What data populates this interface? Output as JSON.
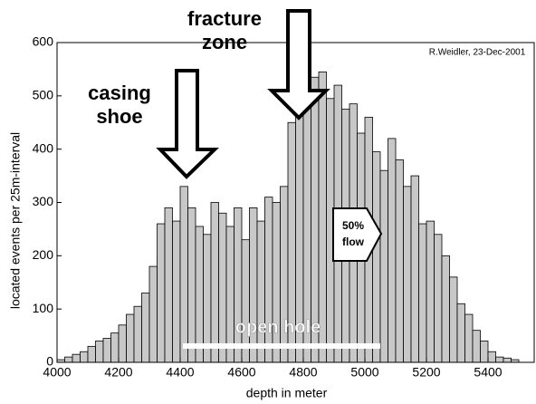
{
  "chart_data": {
    "type": "histogram",
    "xlabel": "depth in meter",
    "ylabel": "located events per 25m-interval",
    "bins": [
      4000,
      4025,
      4050,
      4075,
      4100,
      4125,
      4150,
      4175,
      4200,
      4225,
      4250,
      4275,
      4300,
      4325,
      4350,
      4375,
      4400,
      4425,
      4450,
      4475,
      4500,
      4525,
      4550,
      4575,
      4600,
      4625,
      4650,
      4675,
      4700,
      4725,
      4750,
      4775,
      4800,
      4825,
      4850,
      4875,
      4900,
      4925,
      4950,
      4975,
      5000,
      5025,
      5050,
      5075,
      5100,
      5125,
      5150,
      5175,
      5200,
      5225,
      5250,
      5275,
      5300,
      5325,
      5350,
      5375,
      5400,
      5425,
      5450,
      5475,
      5500
    ],
    "counts": [
      5,
      10,
      15,
      20,
      30,
      40,
      45,
      55,
      70,
      90,
      105,
      130,
      180,
      260,
      290,
      265,
      330,
      290,
      255,
      240,
      300,
      280,
      255,
      290,
      230,
      290,
      265,
      310,
      300,
      330,
      450,
      470,
      545,
      535,
      545,
      495,
      520,
      475,
      485,
      430,
      460,
      395,
      360,
      420,
      380,
      330,
      350,
      260,
      265,
      240,
      200,
      160,
      110,
      90,
      60,
      40,
      20,
      10,
      8,
      5
    ],
    "color": "#c8c8c8",
    "xlim": [
      4000,
      5550
    ],
    "xticks": [
      4000,
      4200,
      4400,
      4600,
      4800,
      5000,
      5200,
      5400
    ],
    "ylim": [
      0,
      600
    ],
    "yticks": [
      0,
      100,
      200,
      300,
      400,
      500,
      600
    ],
    "annotations": [
      "fracture",
      "zone",
      "casing",
      "shoe",
      "50%",
      "flow",
      "open hole",
      "R.Weidler, 23-Dec-2001"
    ]
  }
}
